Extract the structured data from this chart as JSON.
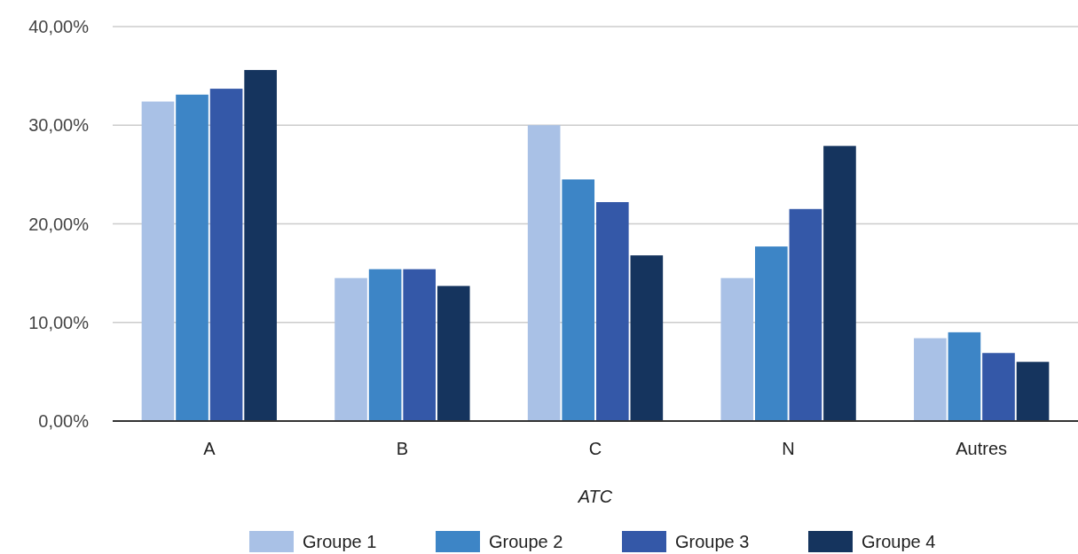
{
  "chart_data": {
    "type": "bar",
    "xlabel": "ATC",
    "categories": [
      "A",
      "B",
      "C",
      "N",
      "Autres"
    ],
    "series": [
      {
        "name": "Groupe 1",
        "color": "#a9c1e6",
        "values": [
          32.4,
          14.5,
          30.0,
          14.5,
          8.4
        ]
      },
      {
        "name": "Groupe 2",
        "color": "#3d85c6",
        "values": [
          33.1,
          15.4,
          24.5,
          17.7,
          9.0
        ]
      },
      {
        "name": "Groupe 3",
        "color": "#3458a8",
        "values": [
          33.7,
          15.4,
          22.2,
          21.5,
          6.9
        ]
      },
      {
        "name": "Groupe 4",
        "color": "#15345e",
        "values": [
          35.6,
          13.7,
          16.8,
          27.9,
          6.0
        ]
      }
    ],
    "ylim": [
      0,
      40
    ],
    "yticks": [
      {
        "value": 0,
        "label": "0,00%"
      },
      {
        "value": 10,
        "label": "10,00%"
      },
      {
        "value": 20,
        "label": "20,00%"
      },
      {
        "value": 30,
        "label": "30,00%"
      },
      {
        "value": 40,
        "label": "40,00%"
      }
    ],
    "grid": "y",
    "legend": "bottom"
  }
}
